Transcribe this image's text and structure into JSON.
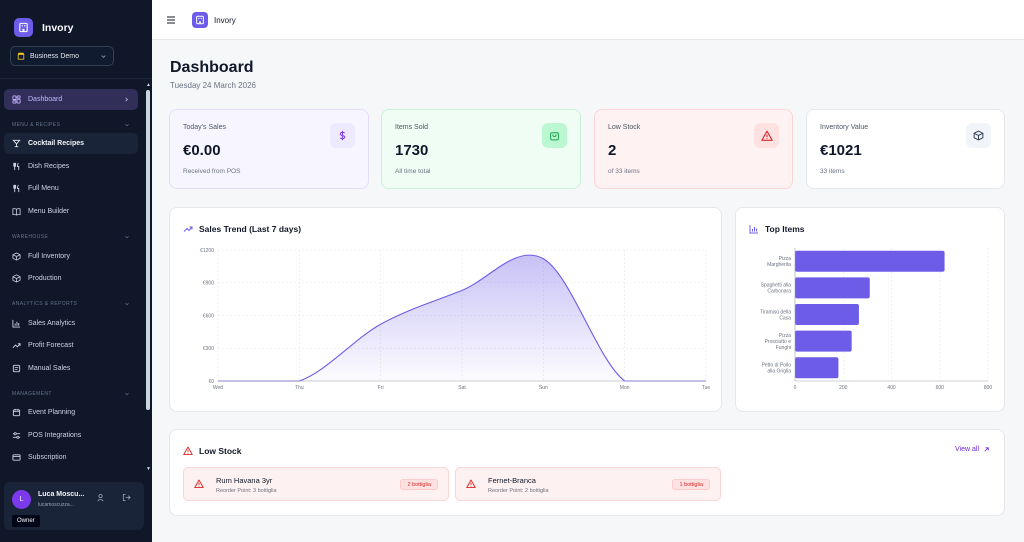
{
  "app": {
    "name": "Invory"
  },
  "business": {
    "selected": "Business Demo"
  },
  "nav": {
    "dashboard": "Dashboard",
    "sections": {
      "menu": "MENU & RECIPES",
      "warehouse": "WAREHOUSE",
      "analytics": "ANALYTICS & REPORTS",
      "management": "MANAGEMENT"
    },
    "items": {
      "cocktail_recipes": "Cocktail Recipes",
      "dish_recipes": "Dish Recipes",
      "full_menu": "Full Menu",
      "menu_builder": "Menu Builder",
      "full_inventory": "Full Inventory",
      "production": "Production",
      "sales_analytics": "Sales Analytics",
      "profit_forecast": "Profit Forecast",
      "manual_sales": "Manual Sales",
      "event_planning": "Event Planning",
      "pos_integrations": "POS Integrations",
      "subscription": "Subscription"
    }
  },
  "user": {
    "initial": "L",
    "name": "Luca Moscu...",
    "email": "lucamoscuzza...",
    "role": "Owner"
  },
  "header": {
    "title": "Dashboard",
    "date": "Tuesday 24 March 2026"
  },
  "stats": [
    {
      "label": "Today's Sales",
      "value": "€0.00",
      "sub": "Received from POS",
      "icon": "dollar-icon"
    },
    {
      "label": "Items Sold",
      "value": "1730",
      "sub": "All time total",
      "icon": "shopping-bag-icon"
    },
    {
      "label": "Low Stock",
      "value": "2",
      "sub": "of 33 items",
      "icon": "warning-icon"
    },
    {
      "label": "Inventory Value",
      "value": "€1021",
      "sub": "33 items",
      "icon": "box-icon"
    }
  ],
  "colors": {
    "accent": "#6d5ce7",
    "sidebar": "#0f1729",
    "danger": "#dc2626",
    "success": "#16a34a"
  },
  "chart_data": [
    {
      "type": "area",
      "title": "Sales Trend (Last 7 days)",
      "categories": [
        "Wed",
        "Thu",
        "Fri",
        "Sat",
        "Sun",
        "Mon",
        "Tue"
      ],
      "values": [
        0,
        0,
        520,
        830,
        1120,
        0,
        0
      ],
      "ytick_labels": [
        "€0",
        "€300",
        "€600",
        "€900",
        "€1200"
      ],
      "yticks": [
        0,
        300,
        600,
        900,
        1200
      ],
      "ylim": [
        0,
        1200
      ],
      "grid": true
    },
    {
      "type": "bar",
      "orientation": "horizontal",
      "title": "Top Items",
      "categories": [
        [
          "Pizza",
          "Margherita"
        ],
        [
          "Spaghetti alla",
          "Carbonara"
        ],
        [
          "Tiramisù della",
          "Casa"
        ],
        [
          "Pizza",
          "Prosciutto e",
          "Funghi"
        ],
        [
          "Petto di Pollo",
          "alla Griglia"
        ]
      ],
      "values": [
        620,
        310,
        265,
        235,
        180
      ],
      "xticks": [
        0,
        200,
        400,
        600,
        800
      ],
      "xtick_labels": [
        "0",
        "200",
        "400",
        "600",
        "800"
      ],
      "xlim": [
        0,
        800
      ],
      "grid": true
    }
  ],
  "low_stock": {
    "title": "Low Stock",
    "view_all": "View all",
    "items": [
      {
        "name": "Rum Havana 3yr",
        "reorder": "Reorder Point: 3 bottiglia",
        "qty": "2 bottiglia"
      },
      {
        "name": "Fernet-Branca",
        "reorder": "Reorder Point: 2 bottiglia",
        "qty": "1 bottiglia"
      }
    ]
  }
}
